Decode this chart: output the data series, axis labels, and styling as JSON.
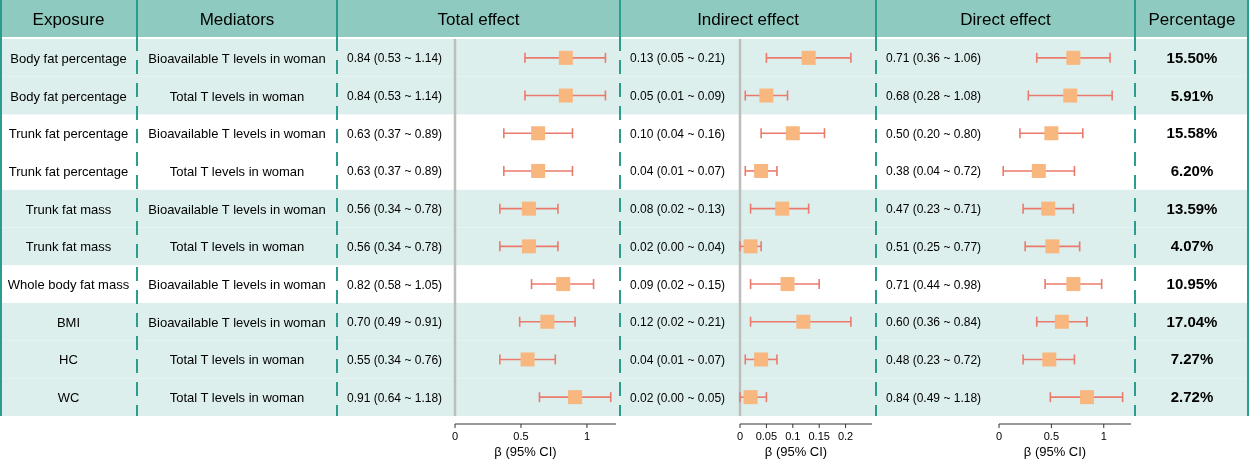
{
  "chart_data": [
    {
      "type": "other",
      "title": "Exposure",
      "categories": [
        "Body fat percentage",
        "Body fat percentage",
        "Trunk fat percentage",
        "Trunk fat percentage",
        "Trunk fat mass",
        "Trunk fat mass",
        "Whole body fat mass",
        "BMI",
        "HC",
        "WC"
      ]
    },
    {
      "type": "other",
      "title": "Mediators",
      "categories": [
        "Bioavailable T levels in woman",
        "Total T levels in woman",
        "Bioavailable T levels in woman",
        "Total T levels in woman",
        "Bioavailable T levels in woman",
        "Total T levels in woman",
        "Bioavailable T levels in woman",
        "Bioavailable T levels in woman",
        "Total T levels in woman",
        "Total T levels in woman"
      ]
    },
    {
      "type": "scatter",
      "orientation": "horizontal",
      "title": "Total effect",
      "xlabel": "β (95% CI)",
      "marker": "square",
      "color": "#f7b77f",
      "categories": [
        null,
        null,
        null,
        null,
        null,
        null,
        null,
        null,
        null,
        null
      ],
      "values": [
        0.84,
        0.84,
        0.63,
        0.63,
        0.56,
        0.56,
        0.82,
        0.7,
        0.55,
        0.91
      ],
      "errors": [
        [
          0.53,
          1.14
        ],
        [
          0.53,
          1.14
        ],
        [
          0.37,
          0.89
        ],
        [
          0.37,
          0.89
        ],
        [
          0.34,
          0.78
        ],
        [
          0.34,
          0.78
        ],
        [
          0.58,
          1.05
        ],
        [
          0.49,
          0.91
        ],
        [
          0.34,
          0.76
        ],
        [
          0.64,
          1.18
        ]
      ],
      "value_labels": [
        "0.84 (0.53 ~ 1.14)",
        "0.84 (0.53 ~ 1.14)",
        "0.63 (0.37 ~ 0.89)",
        "0.63 (0.37 ~ 0.89)",
        "0.56 (0.34 ~ 0.78)",
        "0.56 (0.34 ~ 0.78)",
        "0.82 (0.58 ~ 1.05)",
        "0.70 (0.49 ~ 0.91)",
        "0.55 (0.34 ~ 0.76)",
        "0.91 (0.64 ~ 1.18)"
      ],
      "xlim": [
        0,
        1.22
      ],
      "xticks": [
        0,
        0.5,
        1
      ],
      "ref_lines": [
        {
          "axis": "x",
          "value": 0,
          "color": "#bdbdbd"
        }
      ]
    },
    {
      "type": "scatter",
      "orientation": "horizontal",
      "title": "Indirect effect",
      "xlabel": "β (95% CI)",
      "marker": "square",
      "color": "#f7b77f",
      "categories": [
        null,
        null,
        null,
        null,
        null,
        null,
        null,
        null,
        null,
        null
      ],
      "values": [
        0.13,
        0.05,
        0.1,
        0.04,
        0.08,
        0.02,
        0.09,
        0.12,
        0.04,
        0.02
      ],
      "errors": [
        [
          0.05,
          0.21
        ],
        [
          0.01,
          0.09
        ],
        [
          0.04,
          0.16
        ],
        [
          0.01,
          0.07
        ],
        [
          0.02,
          0.13
        ],
        [
          0.0,
          0.04
        ],
        [
          0.02,
          0.15
        ],
        [
          0.02,
          0.21
        ],
        [
          0.01,
          0.07
        ],
        [
          0.0,
          0.05
        ]
      ],
      "value_labels": [
        "0.13 (0.05 ~ 0.21)",
        "0.05 (0.01 ~ 0.09)",
        "0.10 (0.04 ~ 0.16)",
        "0.04 (0.01 ~ 0.07)",
        "0.08 (0.02 ~ 0.13)",
        "0.02 (0.00 ~ 0.04)",
        "0.09 (0.02 ~ 0.15)",
        "0.12 (0.02 ~ 0.21)",
        "0.04 (0.01 ~ 0.07)",
        "0.02 (0.00 ~ 0.05)"
      ],
      "xlim": [
        0,
        0.25
      ],
      "xticks": [
        0,
        0.05,
        0.1,
        0.15,
        0.2
      ],
      "ref_lines": [
        {
          "axis": "x",
          "value": 0,
          "color": "#bdbdbd"
        }
      ]
    },
    {
      "type": "scatter",
      "orientation": "horizontal",
      "title": "Direct effect",
      "xlabel": "β (95% CI)",
      "marker": "square",
      "color": "#f7b77f",
      "categories": [
        null,
        null,
        null,
        null,
        null,
        null,
        null,
        null,
        null,
        null
      ],
      "values": [
        0.71,
        0.68,
        0.5,
        0.38,
        0.47,
        0.51,
        0.71,
        0.6,
        0.48,
        0.84
      ],
      "errors": [
        [
          0.36,
          1.06
        ],
        [
          0.28,
          1.08
        ],
        [
          0.2,
          0.8
        ],
        [
          0.04,
          0.72
        ],
        [
          0.23,
          0.71
        ],
        [
          0.25,
          0.77
        ],
        [
          0.44,
          0.98
        ],
        [
          0.36,
          0.84
        ],
        [
          0.23,
          0.72
        ],
        [
          0.49,
          1.18
        ]
      ],
      "value_labels": [
        "0.71 (0.36 ~ 1.06)",
        "0.68 (0.28 ~ 1.08)",
        "0.50 (0.20 ~ 0.80)",
        "0.38 (0.04 ~ 0.72)",
        "0.47 (0.23 ~ 0.71)",
        "0.51 (0.25 ~ 0.77)",
        "0.71 (0.44 ~ 0.98)",
        "0.60 (0.36 ~ 0.84)",
        "0.48 (0.23 ~ 0.72)",
        "0.84 (0.49 ~ 1.18)"
      ],
      "xlim": [
        0,
        1.26
      ],
      "xticks": [
        0,
        0.5,
        1
      ]
    },
    {
      "type": "other",
      "title": "Percentage",
      "categories": [
        "15.50%",
        "5.91%",
        "15.58%",
        "6.20%",
        "13.59%",
        "4.07%",
        "10.95%",
        "17.04%",
        "7.27%",
        "2.72%"
      ]
    }
  ]
}
